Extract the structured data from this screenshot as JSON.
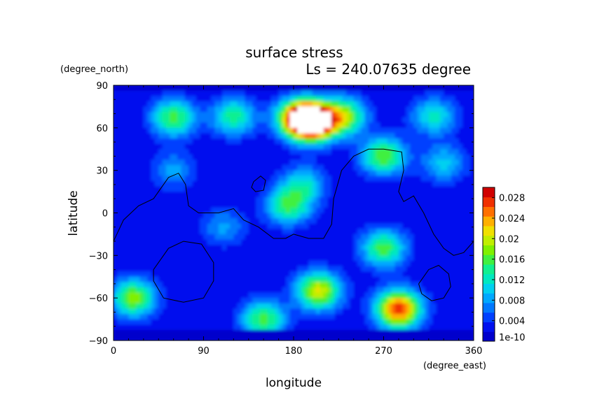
{
  "chart_data": {
    "type": "heatmap",
    "title": "surface stress",
    "subtitle": "Ls = 240.07635 degree",
    "xlabel": "longitude",
    "ylabel": "latitude",
    "x_unit": "(degree_east)",
    "y_unit": "(degree_north)",
    "xlim": [
      0,
      360
    ],
    "ylim": [
      -90,
      90
    ],
    "x_ticks": [
      "0",
      "90",
      "180",
      "270",
      "360"
    ],
    "y_ticks": [
      "90",
      "60",
      "30",
      "0",
      "−30",
      "−60",
      "−90"
    ],
    "colorbar": {
      "labels": [
        "1e-10",
        "0.004",
        "0.008",
        "0.012",
        "0.016",
        "0.02",
        "0.024",
        "0.028"
      ],
      "range": [
        0,
        0.03
      ],
      "colors": [
        "#0000cc",
        "#0010ee",
        "#0040ff",
        "#0078ff",
        "#00a8ff",
        "#00d0f0",
        "#00e8c0",
        "#10f090",
        "#40f040",
        "#80f000",
        "#c0ee00",
        "#f0e000",
        "#ffb000",
        "#ff7000",
        "#f03000",
        "#d00000"
      ]
    },
    "field": {
      "background": 0.002,
      "features": [
        {
          "lon": 200,
          "lat": 64,
          "value": 0.03
        },
        {
          "lon": 185,
          "lat": 67,
          "value": 0.022
        },
        {
          "lon": 60,
          "lat": 67,
          "value": 0.014
        },
        {
          "lon": 120,
          "lat": 68,
          "value": 0.012
        },
        {
          "lon": 320,
          "lat": 68,
          "value": 0.01
        },
        {
          "lon": 230,
          "lat": 68,
          "value": 0.016
        },
        {
          "lon": 270,
          "lat": 40,
          "value": 0.015
        },
        {
          "lon": 175,
          "lat": 5,
          "value": 0.013
        },
        {
          "lon": 190,
          "lat": 20,
          "value": 0.009
        },
        {
          "lon": 270,
          "lat": -25,
          "value": 0.014
        },
        {
          "lon": 20,
          "lat": -60,
          "value": 0.016
        },
        {
          "lon": 205,
          "lat": -55,
          "value": 0.019
        },
        {
          "lon": 285,
          "lat": -68,
          "value": 0.026
        },
        {
          "lon": 150,
          "lat": -75,
          "value": 0.014
        },
        {
          "lon": 330,
          "lat": 35,
          "value": 0.008
        },
        {
          "lon": 60,
          "lat": 30,
          "value": 0.006
        },
        {
          "lon": 110,
          "lat": -10,
          "value": 0.006
        }
      ]
    },
    "contours": [
      [
        [
          0,
          -20
        ],
        [
          10,
          -5
        ],
        [
          25,
          5
        ],
        [
          40,
          10
        ],
        [
          55,
          25
        ],
        [
          65,
          28
        ],
        [
          72,
          20
        ],
        [
          75,
          5
        ],
        [
          85,
          0
        ],
        [
          105,
          0
        ],
        [
          120,
          3
        ],
        [
          130,
          -5
        ],
        [
          145,
          -10
        ],
        [
          160,
          -18
        ],
        [
          172,
          -18
        ],
        [
          180,
          -15
        ],
        [
          195,
          -18
        ],
        [
          210,
          -18
        ],
        [
          218,
          -8
        ],
        [
          220,
          10
        ],
        [
          228,
          30
        ],
        [
          240,
          40
        ],
        [
          255,
          45
        ],
        [
          270,
          45
        ],
        [
          288,
          43
        ],
        [
          290,
          30
        ],
        [
          285,
          15
        ],
        [
          290,
          8
        ],
        [
          300,
          12
        ],
        [
          310,
          0
        ],
        [
          320,
          -15
        ],
        [
          330,
          -25
        ],
        [
          340,
          -30
        ],
        [
          350,
          -28
        ],
        [
          360,
          -20
        ]
      ],
      [
        [
          140,
          22
        ],
        [
          147,
          26
        ],
        [
          152,
          23
        ],
        [
          150,
          16
        ],
        [
          142,
          15
        ],
        [
          138,
          18
        ],
        [
          140,
          22
        ]
      ],
      [
        [
          40,
          -40
        ],
        [
          55,
          -25
        ],
        [
          70,
          -20
        ],
        [
          88,
          -22
        ],
        [
          100,
          -35
        ],
        [
          100,
          -48
        ],
        [
          90,
          -60
        ],
        [
          70,
          -63
        ],
        [
          50,
          -60
        ],
        [
          40,
          -48
        ],
        [
          40,
          -40
        ]
      ],
      [
        [
          305,
          -50
        ],
        [
          315,
          -40
        ],
        [
          325,
          -37
        ],
        [
          335,
          -43
        ],
        [
          337,
          -52
        ],
        [
          330,
          -60
        ],
        [
          318,
          -62
        ],
        [
          308,
          -57
        ],
        [
          305,
          -50
        ]
      ]
    ]
  }
}
